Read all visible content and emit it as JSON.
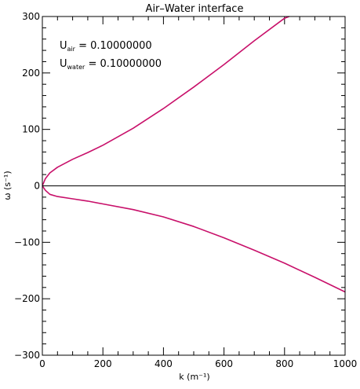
{
  "chart_data": {
    "type": "line",
    "title": "Air–Water interface",
    "xlabel": "k (m⁻¹)",
    "ylabel": "ω (s⁻¹)",
    "xlim": [
      0,
      1000
    ],
    "ylim": [
      -300,
      300
    ],
    "x_ticks": [
      0,
      200,
      400,
      600,
      800,
      1000
    ],
    "y_ticks": [
      -300,
      -200,
      -100,
      0,
      100,
      200,
      300
    ],
    "x_tick_labels": [
      "0",
      "200",
      "400",
      "600",
      "800",
      "1000"
    ],
    "y_tick_labels": [
      "−300",
      "−200",
      "−100",
      "0",
      "100",
      "200",
      "300"
    ],
    "grid": false,
    "annotations": [
      {
        "symbol": "U",
        "subscript": "air",
        "text": " = 0.10000000"
      },
      {
        "symbol": "U",
        "subscript": "water",
        "text": " = 0.10000000"
      }
    ],
    "series": [
      {
        "color": "#c8106a",
        "x": [
          0,
          10,
          25,
          50,
          100,
          150,
          200,
          300,
          400,
          500,
          600,
          700,
          800,
          815
        ],
        "values": [
          0,
          13,
          23,
          33,
          47,
          59,
          72,
          102,
          137,
          175,
          215,
          257,
          297,
          300
        ]
      },
      {
        "color": "#c8106a",
        "x": [
          0,
          10,
          25,
          50,
          100,
          150,
          200,
          300,
          400,
          500,
          600,
          700,
          800,
          900,
          1000
        ],
        "values": [
          0,
          -8,
          -15,
          -19,
          -23,
          -27,
          -32,
          -42,
          -55,
          -72,
          -92,
          -114,
          -137,
          -162,
          -188
        ]
      },
      {
        "color": "#000000",
        "x": [
          0,
          1000
        ],
        "values": [
          0,
          0
        ]
      }
    ]
  }
}
